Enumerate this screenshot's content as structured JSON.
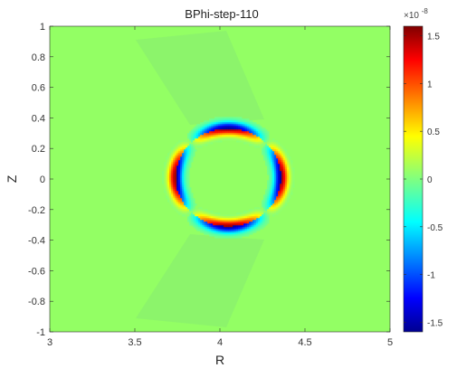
{
  "chart_data": {
    "type": "heatmap",
    "title": "BPhi-step-110",
    "xlabel": "R",
    "ylabel": "Z",
    "xlim": [
      3,
      5
    ],
    "ylim": [
      -1,
      1
    ],
    "xticks": [
      3,
      3.5,
      4,
      4.5,
      5
    ],
    "xtick_labels": [
      "3",
      "3.5",
      "4",
      "4.5",
      "5"
    ],
    "yticks": [
      1,
      0.8,
      0.6,
      0.4,
      0.2,
      0,
      -0.2,
      -0.4,
      -0.6,
      -0.8,
      -1
    ],
    "ytick_labels": [
      "1",
      "0.8",
      "0.6",
      "0.4",
      "0.2",
      "0",
      "-0.2",
      "-0.4",
      "-0.6",
      "-0.8",
      "-1"
    ],
    "colorbar": {
      "colormap": "jet",
      "clim": [
        -1.6e-08,
        1.6e-08
      ],
      "ticks": [
        1.5,
        1,
        0.5,
        0,
        -0.5,
        -1,
        -1.5
      ],
      "tick_labels": [
        "1.5",
        "1",
        "0.5",
        "0",
        "-0.5",
        "-1",
        "-1.5"
      ],
      "exponent_base": "×10",
      "exponent": "-8"
    },
    "features": {
      "ring_center": [
        4.05,
        0.01
      ],
      "ring_radius_R": 0.31,
      "ring_radius_Z": 0.32,
      "ring_peak": 1.5e-08,
      "ring_trough": -1.5e-08,
      "background": 0
    }
  }
}
